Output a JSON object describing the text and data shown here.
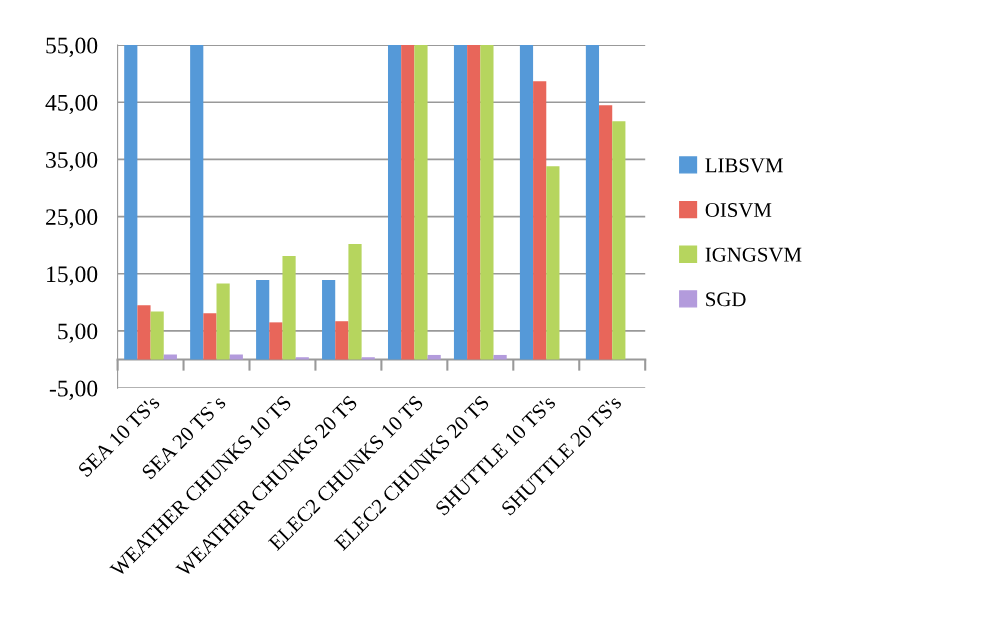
{
  "chart_data": {
    "type": "bar",
    "categories": [
      "SEA 10 TS's",
      "SEA 20 TS`s",
      "WEATHER CHUNKS 10 TS",
      "WEATHER CHUNKS 20 TS",
      "ELEC2 CHUNKS 10 TS",
      "ELEC2 CHUNKS 20 TS",
      "SHUTTLE 10 TS's",
      "SHUTTLE 20 TS's"
    ],
    "series": [
      {
        "name": "LIBSVM",
        "color": "#5599d8",
        "values": [
          55,
          55,
          13.9,
          13.9,
          55,
          55,
          55,
          55
        ]
      },
      {
        "name": "OISVM",
        "color": "#e8665a",
        "values": [
          9.5,
          8.1,
          6.5,
          6.7,
          55,
          55,
          48.7,
          44.5
        ]
      },
      {
        "name": "IGNGSVM",
        "color": "#b6d55e",
        "values": [
          8.4,
          13.3,
          18.1,
          20.2,
          55,
          55,
          33.8,
          41.7
        ]
      },
      {
        "name": "SGD",
        "color": "#b39bdc",
        "values": [
          0.9,
          0.9,
          0.4,
          0.4,
          0.8,
          0.8,
          null,
          null
        ]
      }
    ],
    "ylim": [
      -5,
      55
    ],
    "yticks": [
      {
        "value": -5,
        "label": "-5,00"
      },
      {
        "value": 5,
        "label": "5,00"
      },
      {
        "value": 15,
        "label": "15,00"
      },
      {
        "value": 25,
        "label": "25,00"
      },
      {
        "value": 35,
        "label": "35,00"
      },
      {
        "value": 45,
        "label": "45,00"
      },
      {
        "value": 55,
        "label": "55,00"
      }
    ],
    "grid": "y",
    "legend": "right"
  }
}
